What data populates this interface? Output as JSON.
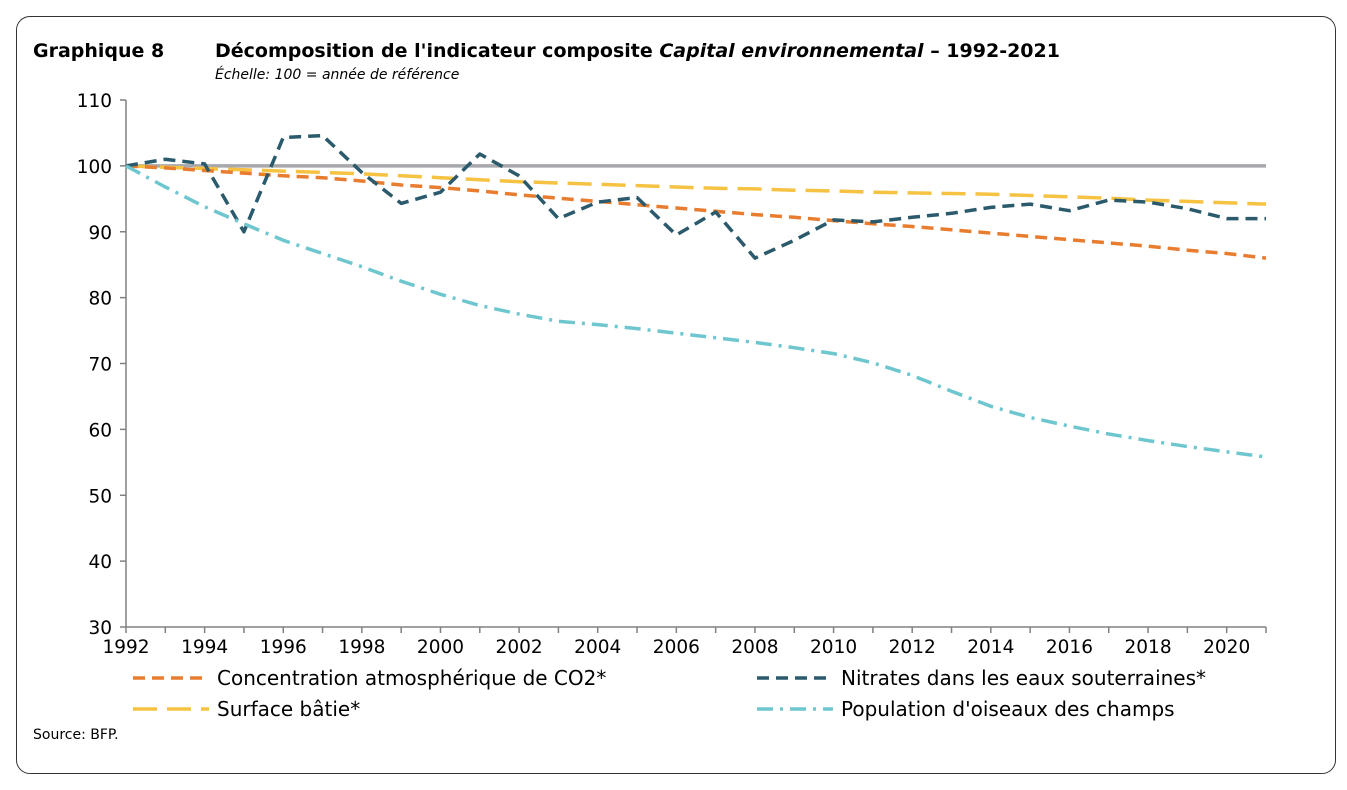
{
  "header": {
    "graph_label": "Graphique 8",
    "title_prefix": "Décomposition de l'indicateur composite ",
    "title_italic": "Capital environnemental",
    "title_suffix": " – 1992-2021",
    "subtitle": "Échelle: 100 = année de référence"
  },
  "footer": {
    "source": "Source: BFP."
  },
  "chart_data": {
    "type": "line",
    "title": "Décomposition de l'indicateur composite Capital environnemental – 1992-2021",
    "subtitle": "Échelle: 100 = année de référence",
    "xlabel": "",
    "ylabel": "",
    "xlim": [
      1992,
      2021
    ],
    "ylim": [
      30,
      110
    ],
    "yticks": [
      30,
      40,
      50,
      60,
      70,
      80,
      90,
      100,
      110
    ],
    "xticks": [
      1992,
      1994,
      1996,
      1998,
      2000,
      2002,
      2004,
      2006,
      2008,
      2010,
      2012,
      2014,
      2016,
      2018,
      2020
    ],
    "reference_line": {
      "y": 100,
      "color": "#a6a8ab"
    },
    "grid": false,
    "legend_position": "bottom",
    "x": [
      1992,
      1993,
      1994,
      1995,
      1996,
      1997,
      1998,
      1999,
      2000,
      2001,
      2002,
      2003,
      2004,
      2005,
      2006,
      2007,
      2008,
      2009,
      2010,
      2011,
      2012,
      2013,
      2014,
      2015,
      2016,
      2017,
      2018,
      2019,
      2020,
      2021
    ],
    "series": [
      {
        "name": "Concentration atmosphérique de CO2*",
        "color": "#e87d2f",
        "dash": "dashed",
        "values": [
          100,
          99.7,
          99.3,
          98.9,
          98.5,
          98.2,
          97.7,
          97.1,
          96.7,
          96.2,
          95.6,
          95.1,
          94.6,
          94.1,
          93.6,
          93.1,
          92.6,
          92.2,
          91.7,
          91.2,
          90.8,
          90.3,
          89.8,
          89.3,
          88.8,
          88.3,
          87.8,
          87.2,
          86.7,
          86.0
        ]
      },
      {
        "name": "Nitrates dans les eaux souterraines*",
        "color": "#2a5a6b",
        "dash": "dashed",
        "values": [
          100,
          101,
          100.3,
          90,
          104.3,
          104.6,
          99,
          94.3,
          96,
          101.8,
          98.5,
          92,
          94.5,
          95.2,
          89.5,
          93,
          86,
          88.7,
          91.8,
          91.5,
          92.2,
          92.8,
          93.7,
          94.2,
          93.2,
          94.8,
          94.5,
          93.5,
          92,
          92
        ]
      },
      {
        "name": "Surface bâtie*",
        "color": "#f5c242",
        "dash": "longdash",
        "values": [
          100,
          99.8,
          99.6,
          99.4,
          99.2,
          99.0,
          98.8,
          98.5,
          98.2,
          97.9,
          97.6,
          97.4,
          97.2,
          97.0,
          96.8,
          96.6,
          96.5,
          96.3,
          96.2,
          96.0,
          95.9,
          95.8,
          95.7,
          95.5,
          95.3,
          95.1,
          94.8,
          94.6,
          94.4,
          94.2
        ]
      },
      {
        "name": "Population d'oiseaux des champs",
        "color": "#6ec6cf",
        "dash": "dashdot",
        "values": [
          100,
          96.8,
          93.8,
          91.2,
          88.7,
          86.7,
          84.7,
          82.5,
          80.5,
          78.8,
          77.5,
          76.4,
          75.9,
          75.3,
          74.6,
          73.9,
          73.2,
          72.4,
          71.5,
          70.1,
          68.2,
          65.8,
          63.5,
          61.8,
          60.5,
          59.3,
          58.3,
          57.4,
          56.6,
          55.8
        ]
      }
    ]
  }
}
